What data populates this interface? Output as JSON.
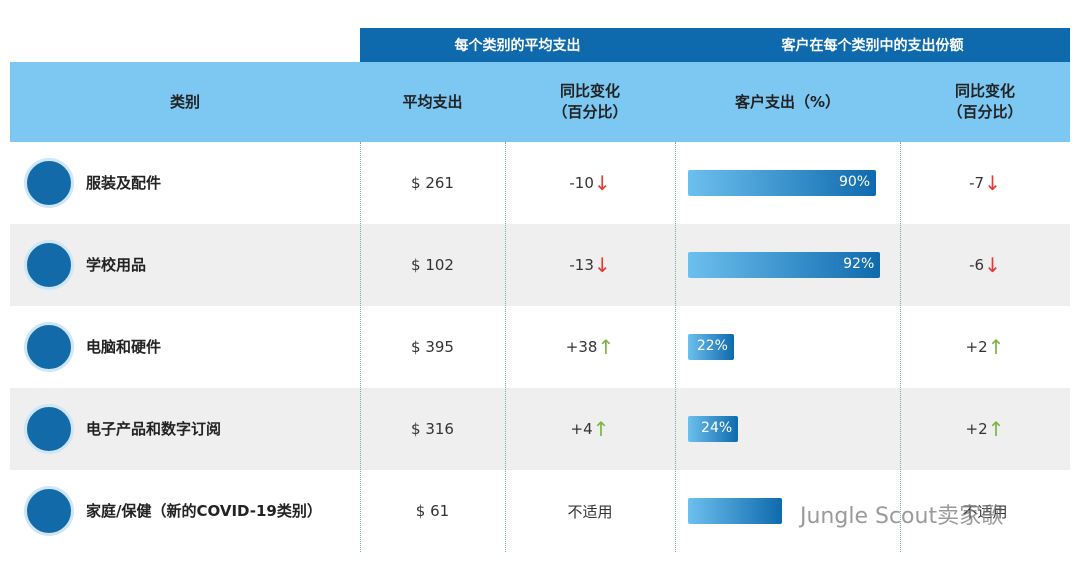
{
  "header_groups": [
    "每个类别的平均支出",
    "客户在每个类别中的支出份额"
  ],
  "columns": [
    [
      "类别"
    ],
    [
      "平均支出"
    ],
    [
      "同比变化",
      "（百分比）"
    ],
    [
      "客户支出（%）"
    ],
    [
      "同比变化",
      "（百分比）"
    ]
  ],
  "rows": [
    {
      "category": "服装及配件",
      "avg_spend": "$ 261",
      "yoy": "-10",
      "yoy_trend": "down",
      "share": 90,
      "share_label": "90%",
      "share_yoy": "-7",
      "share_yoy_trend": "down"
    },
    {
      "category": "学校用品",
      "avg_spend": "$ 102",
      "yoy": "-13",
      "yoy_trend": "down",
      "share": 92,
      "share_label": "92%",
      "share_yoy": "-6",
      "share_yoy_trend": "down"
    },
    {
      "category": "电脑和硬件",
      "avg_spend": "$ 395",
      "yoy": "+38",
      "yoy_trend": "up",
      "share": 22,
      "share_label": "22%",
      "share_yoy": "+2",
      "share_yoy_trend": "up"
    },
    {
      "category": "电子产品和数字订阅",
      "avg_spend": "$ 316",
      "yoy": "+4",
      "yoy_trend": "up",
      "share": 24,
      "share_label": "24%",
      "share_yoy": "+2",
      "share_yoy_trend": "up"
    },
    {
      "category": "家庭/保健（新的COVID-19类别）",
      "avg_spend": "$ 61",
      "yoy": "不适用",
      "yoy_trend": null,
      "share": 45,
      "share_label": null,
      "share_yoy": "不适用",
      "share_yoy_trend": null
    }
  ],
  "share_max": 100,
  "watermark": "Jungle Scout卖家歌"
}
